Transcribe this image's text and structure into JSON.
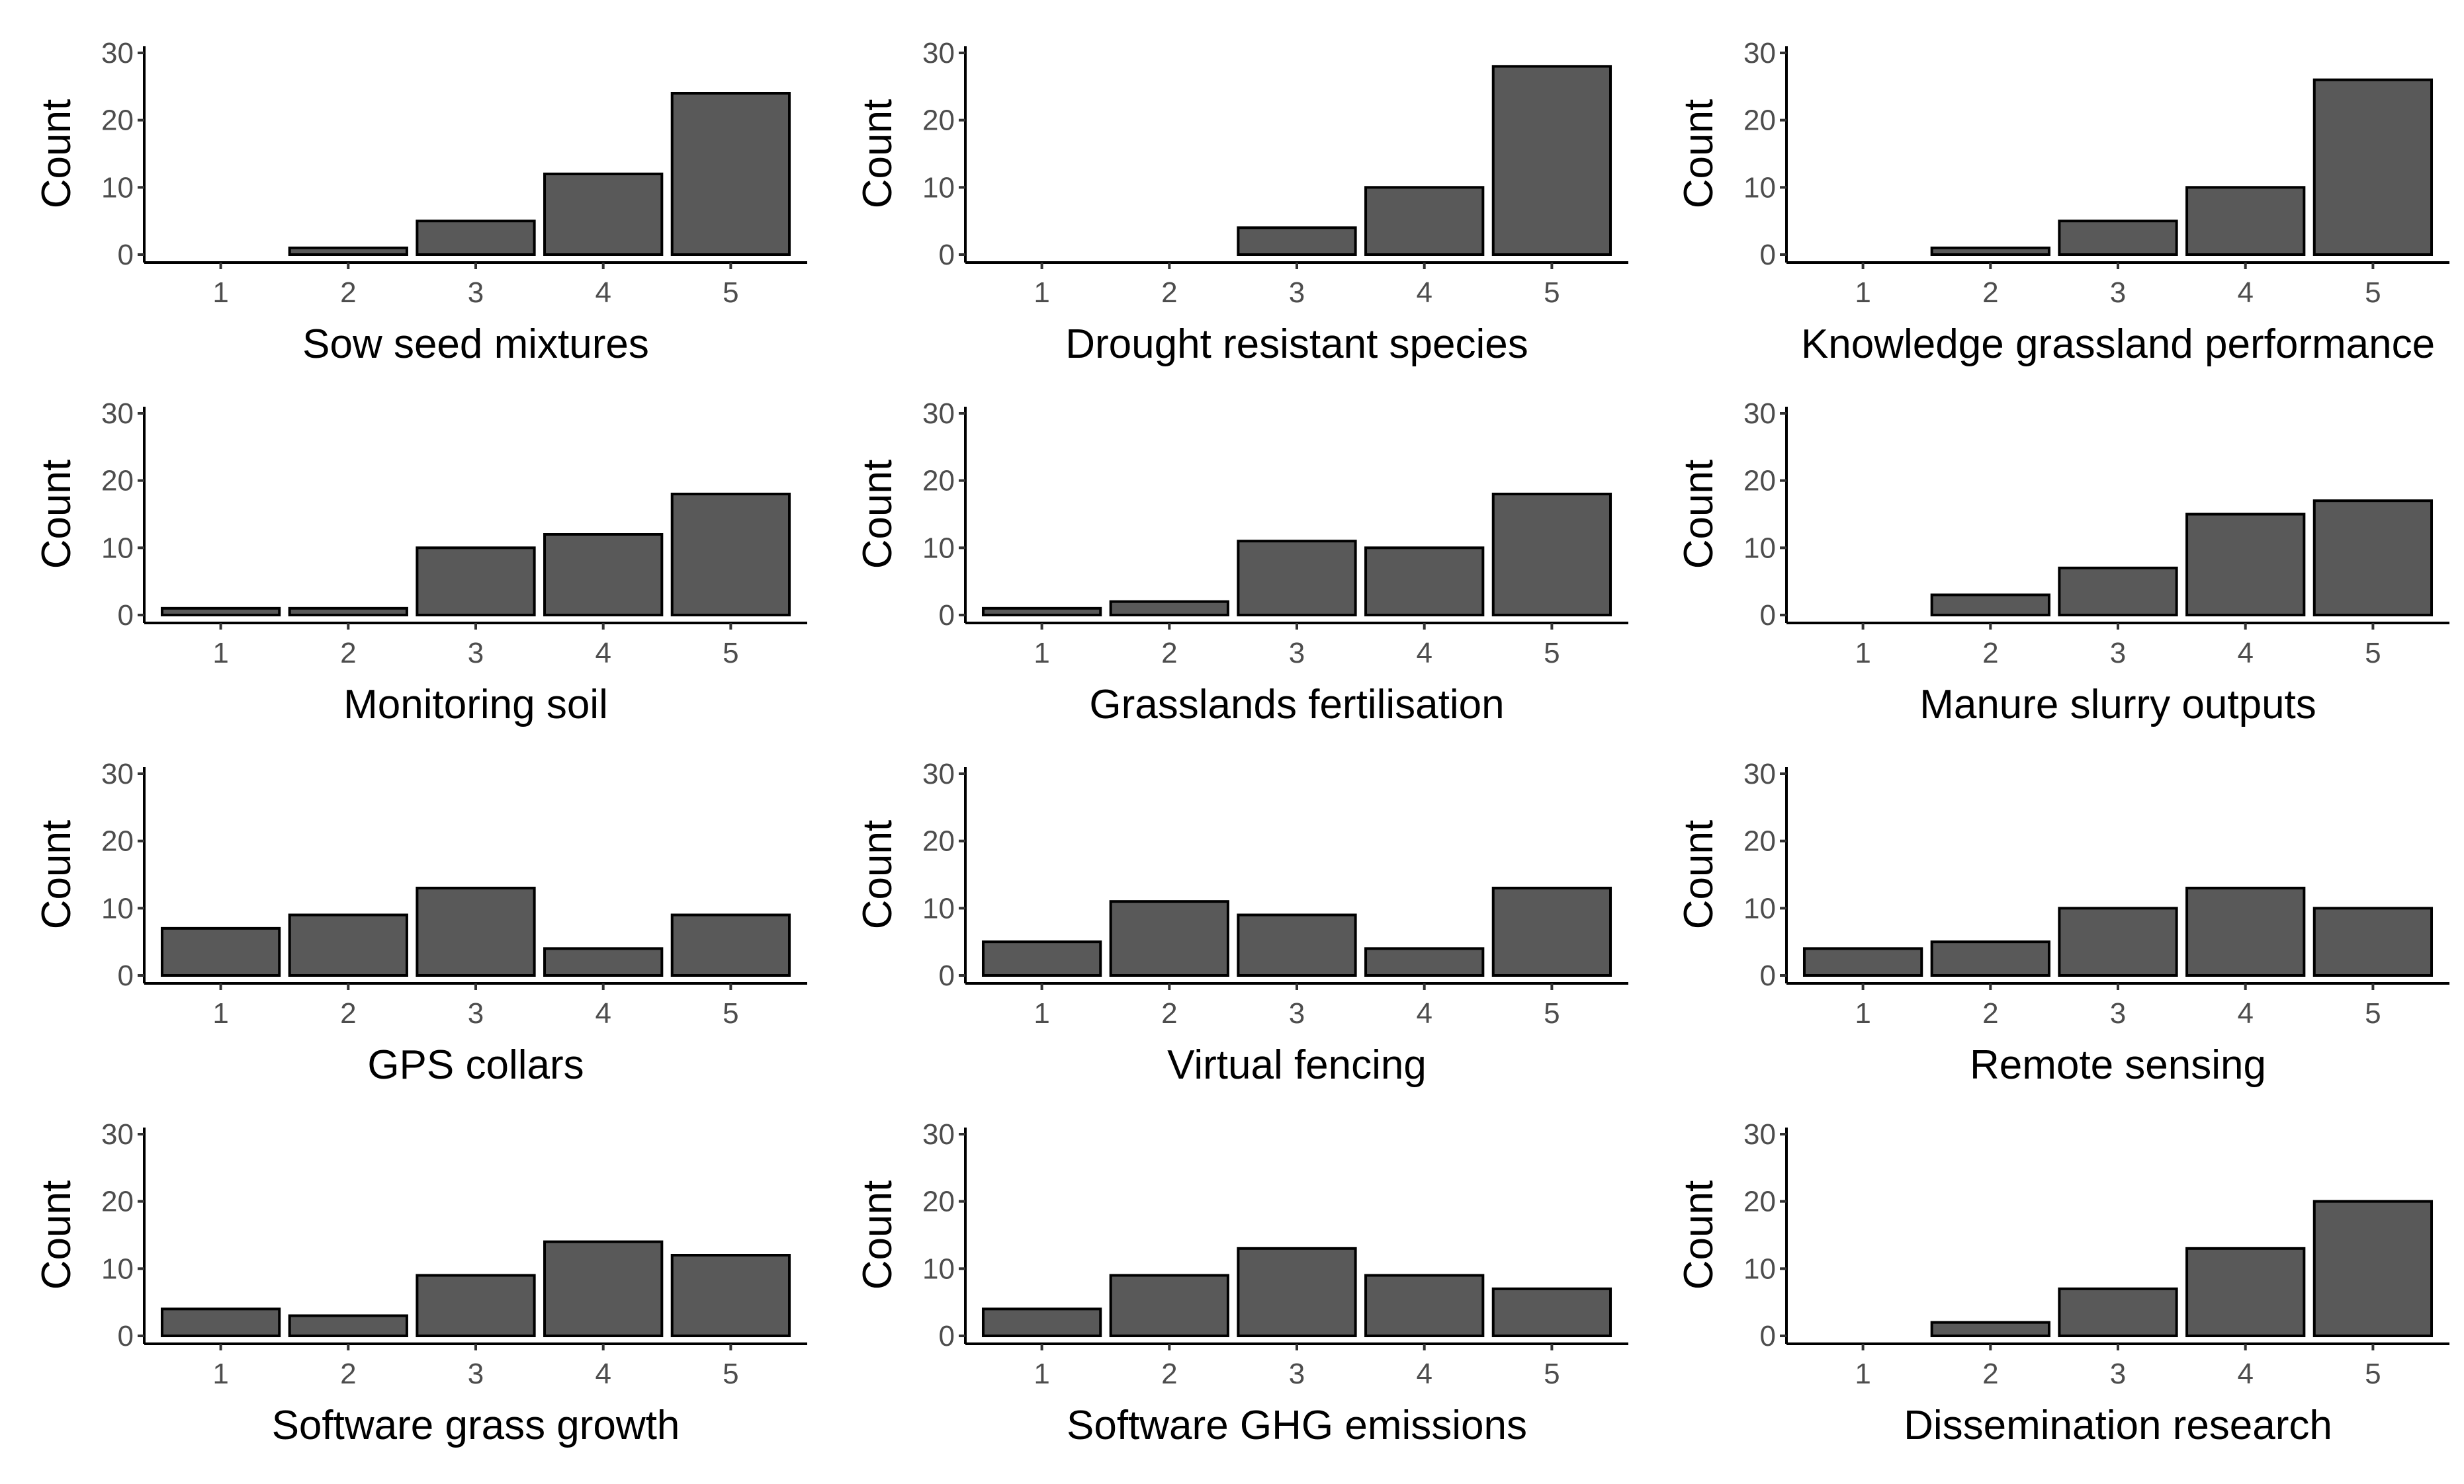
{
  "chart_data": [
    {
      "type": "bar",
      "categories": [
        "1",
        "2",
        "3",
        "4",
        "5"
      ],
      "values": [
        0,
        1,
        5,
        12,
        24
      ],
      "xlabel": "Sow seed mixtures",
      "ylabel": "Count",
      "ylim": [
        0,
        30
      ],
      "yticks": [
        0,
        10,
        20,
        30
      ],
      "grid": false
    },
    {
      "type": "bar",
      "categories": [
        "1",
        "2",
        "3",
        "4",
        "5"
      ],
      "values": [
        0,
        0,
        4,
        10,
        28
      ],
      "xlabel": "Drought resistant species",
      "ylabel": "Count",
      "ylim": [
        0,
        30
      ],
      "yticks": [
        0,
        10,
        20,
        30
      ],
      "grid": false
    },
    {
      "type": "bar",
      "categories": [
        "1",
        "2",
        "3",
        "4",
        "5"
      ],
      "values": [
        0,
        1,
        5,
        10,
        26
      ],
      "xlabel": "Knowledge grassland performance",
      "ylabel": "Count",
      "ylim": [
        0,
        30
      ],
      "yticks": [
        0,
        10,
        20,
        30
      ],
      "grid": false
    },
    {
      "type": "bar",
      "categories": [
        "1",
        "2",
        "3",
        "4",
        "5"
      ],
      "values": [
        1,
        1,
        10,
        12,
        18
      ],
      "xlabel": "Monitoring soil",
      "ylabel": "Count",
      "ylim": [
        0,
        30
      ],
      "yticks": [
        0,
        10,
        20,
        30
      ],
      "grid": false
    },
    {
      "type": "bar",
      "categories": [
        "1",
        "2",
        "3",
        "4",
        "5"
      ],
      "values": [
        1,
        2,
        11,
        10,
        18
      ],
      "xlabel": "Grasslands fertilisation",
      "ylabel": "Count",
      "ylim": [
        0,
        30
      ],
      "yticks": [
        0,
        10,
        20,
        30
      ],
      "grid": false
    },
    {
      "type": "bar",
      "categories": [
        "1",
        "2",
        "3",
        "4",
        "5"
      ],
      "values": [
        0,
        3,
        7,
        15,
        17
      ],
      "xlabel": "Manure slurry outputs",
      "ylabel": "Count",
      "ylim": [
        0,
        30
      ],
      "yticks": [
        0,
        10,
        20,
        30
      ],
      "grid": false
    },
    {
      "type": "bar",
      "categories": [
        "1",
        "2",
        "3",
        "4",
        "5"
      ],
      "values": [
        7,
        9,
        13,
        4,
        9
      ],
      "xlabel": "GPS collars",
      "ylabel": "Count",
      "ylim": [
        0,
        30
      ],
      "yticks": [
        0,
        10,
        20,
        30
      ],
      "grid": false
    },
    {
      "type": "bar",
      "categories": [
        "1",
        "2",
        "3",
        "4",
        "5"
      ],
      "values": [
        5,
        11,
        9,
        4,
        13
      ],
      "xlabel": "Virtual fencing",
      "ylabel": "Count",
      "ylim": [
        0,
        30
      ],
      "yticks": [
        0,
        10,
        20,
        30
      ],
      "grid": false
    },
    {
      "type": "bar",
      "categories": [
        "1",
        "2",
        "3",
        "4",
        "5"
      ],
      "values": [
        4,
        5,
        10,
        13,
        10
      ],
      "xlabel": "Remote sensing",
      "ylabel": "Count",
      "ylim": [
        0,
        30
      ],
      "yticks": [
        0,
        10,
        20,
        30
      ],
      "grid": false
    },
    {
      "type": "bar",
      "categories": [
        "1",
        "2",
        "3",
        "4",
        "5"
      ],
      "values": [
        4,
        3,
        9,
        14,
        12
      ],
      "xlabel": "Software grass growth",
      "ylabel": "Count",
      "ylim": [
        0,
        30
      ],
      "yticks": [
        0,
        10,
        20,
        30
      ],
      "grid": false
    },
    {
      "type": "bar",
      "categories": [
        "1",
        "2",
        "3",
        "4",
        "5"
      ],
      "values": [
        4,
        9,
        13,
        9,
        7
      ],
      "xlabel": "Software GHG emissions",
      "ylabel": "Count",
      "ylim": [
        0,
        30
      ],
      "yticks": [
        0,
        10,
        20,
        30
      ],
      "grid": false
    },
    {
      "type": "bar",
      "categories": [
        "1",
        "2",
        "3",
        "4",
        "5"
      ],
      "values": [
        0,
        2,
        7,
        13,
        20
      ],
      "xlabel": "Dissemination research",
      "ylabel": "Count",
      "ylim": [
        0,
        30
      ],
      "yticks": [
        0,
        10,
        20,
        30
      ],
      "grid": false
    }
  ]
}
